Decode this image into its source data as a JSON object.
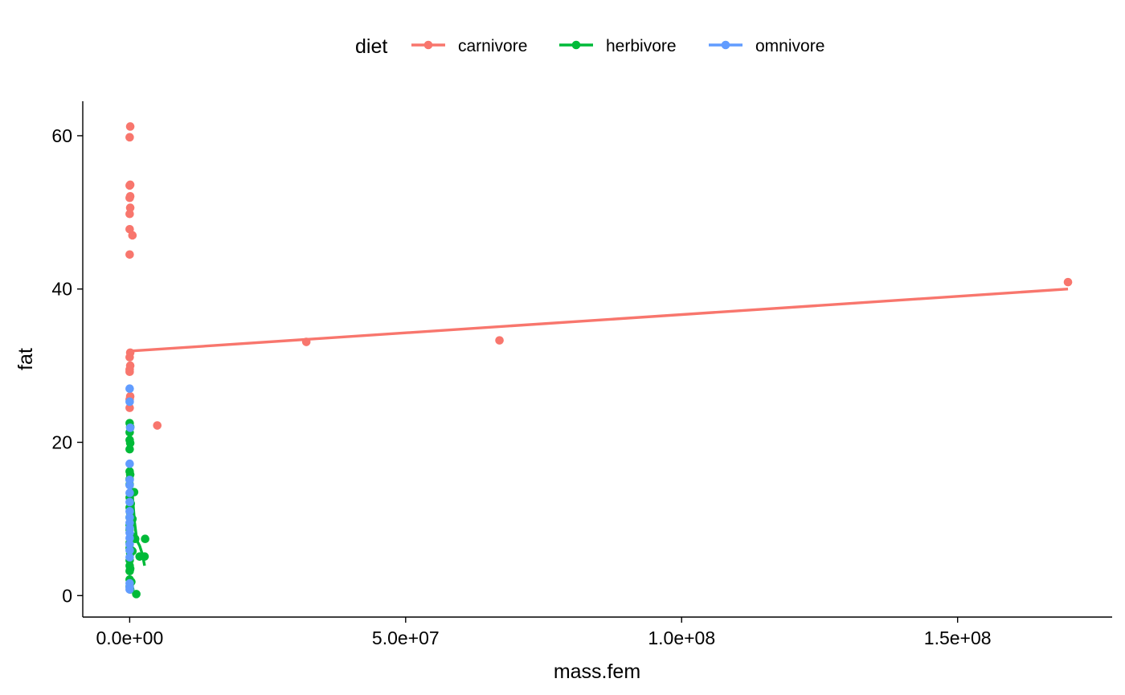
{
  "chart_data": {
    "type": "scatter",
    "title": "",
    "xlabel": "mass.fem",
    "ylabel": "fat",
    "xlim": [
      -8500000,
      178000000
    ],
    "ylim": [
      -2.8,
      64.5
    ],
    "x_ticks": [
      0,
      50000000,
      100000000,
      150000000
    ],
    "x_tick_labels": [
      "0.0e+00",
      "5.0e+07",
      "1.0e+08",
      "1.5e+08"
    ],
    "y_ticks": [
      0,
      20,
      40,
      60
    ],
    "y_tick_labels": [
      "0",
      "20",
      "40",
      "60"
    ],
    "grid": false,
    "legend": {
      "title": "diet",
      "position": "top"
    },
    "series": [
      {
        "name": "carnivore",
        "color": "#F8766D",
        "points": [
          [
            100000,
            61.2
          ],
          [
            0,
            59.8
          ],
          [
            100000,
            53.6
          ],
          [
            0,
            53.5
          ],
          [
            100000,
            52.1
          ],
          [
            0,
            51.9
          ],
          [
            100000,
            50.6
          ],
          [
            0,
            49.8
          ],
          [
            0,
            47.8
          ],
          [
            500000,
            47.0
          ],
          [
            0,
            44.5
          ],
          [
            100000,
            31.7
          ],
          [
            0,
            31.1
          ],
          [
            100000,
            30.0
          ],
          [
            0,
            29.5
          ],
          [
            0,
            29.2
          ],
          [
            100000,
            26.0
          ],
          [
            0,
            25.6
          ],
          [
            0,
            24.5
          ],
          [
            5000000,
            22.2
          ],
          [
            32000000,
            33.1
          ],
          [
            67000000,
            33.3
          ],
          [
            170000000,
            40.9
          ]
        ],
        "trend": [
          [
            0,
            31.9
          ],
          [
            170000000,
            40.0
          ]
        ]
      },
      {
        "name": "herbivore",
        "color": "#00BA38",
        "points": [
          [
            0,
            22.5
          ],
          [
            100000,
            22.0
          ],
          [
            0,
            21.3
          ],
          [
            0,
            20.3
          ],
          [
            100000,
            19.9
          ],
          [
            0,
            19.1
          ],
          [
            0,
            16.2
          ],
          [
            100000,
            15.8
          ],
          [
            0,
            15.2
          ],
          [
            0,
            14.5
          ],
          [
            800000,
            13.5
          ],
          [
            0,
            12.8
          ],
          [
            200000,
            12.0
          ],
          [
            0,
            11.5
          ],
          [
            100000,
            10.8
          ],
          [
            0,
            10.2
          ],
          [
            500000,
            10.0
          ],
          [
            0,
            9.2
          ],
          [
            0,
            8.6
          ],
          [
            300000,
            7.8
          ],
          [
            1000000,
            7.4
          ],
          [
            2800000,
            7.4
          ],
          [
            0,
            6.9
          ],
          [
            0,
            6.2
          ],
          [
            500000,
            5.8
          ],
          [
            100000,
            5.5
          ],
          [
            1800000,
            5.1
          ],
          [
            2700000,
            5.1
          ],
          [
            0,
            4.6
          ],
          [
            0,
            3.9
          ],
          [
            100000,
            3.5
          ],
          [
            0,
            3.2
          ],
          [
            0,
            2.1
          ],
          [
            300000,
            1.8
          ],
          [
            0,
            1.2
          ],
          [
            100000,
            0.8
          ],
          [
            1200000,
            0.2
          ]
        ],
        "trend": [
          [
            0,
            16.0
          ],
          [
            500000,
            13.0
          ],
          [
            900000,
            9.5
          ],
          [
            1300000,
            7.2
          ],
          [
            1800000,
            6.5
          ],
          [
            2300000,
            5.4
          ],
          [
            2700000,
            3.9
          ]
        ]
      },
      {
        "name": "omnivore",
        "color": "#619CFF",
        "points": [
          [
            0,
            27.0
          ],
          [
            0,
            25.3
          ],
          [
            100000,
            21.9
          ],
          [
            0,
            17.2
          ],
          [
            0,
            15.1
          ],
          [
            0,
            14.4
          ],
          [
            0,
            13.4
          ],
          [
            0,
            12.2
          ],
          [
            0,
            11.0
          ],
          [
            0,
            10.2
          ],
          [
            0,
            9.5
          ],
          [
            0,
            8.8
          ],
          [
            0,
            8.2
          ],
          [
            0,
            7.5
          ],
          [
            0,
            6.7
          ],
          [
            0,
            5.9
          ],
          [
            0,
            5.0
          ],
          [
            0,
            1.6
          ],
          [
            0,
            1.1
          ],
          [
            0,
            0.8
          ]
        ]
      }
    ]
  }
}
